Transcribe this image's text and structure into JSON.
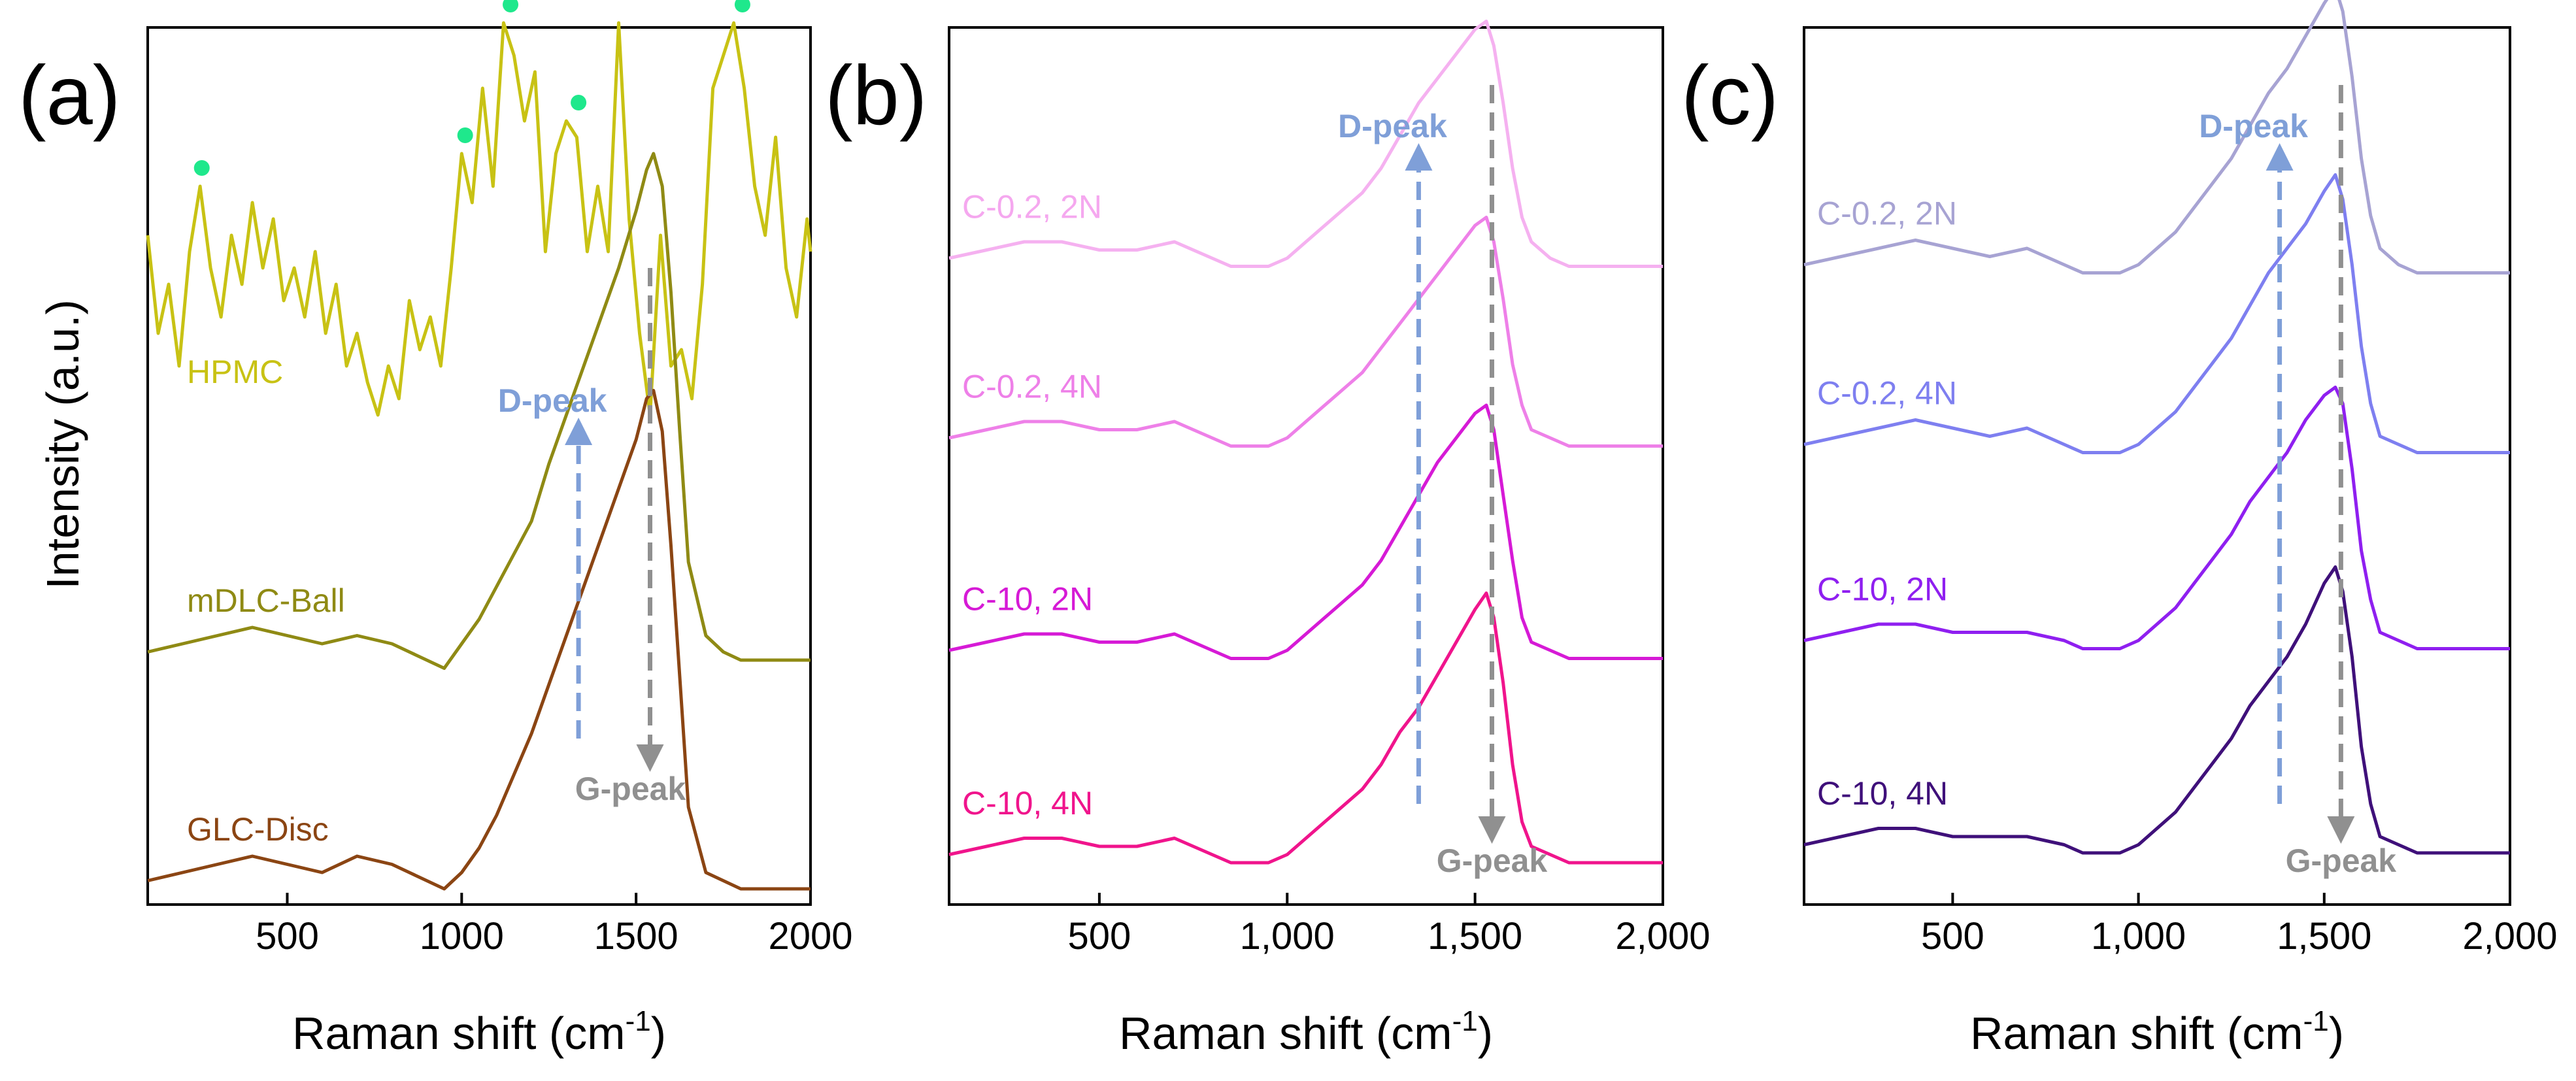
{
  "figure": {
    "y_axis_title": "Intensity (a.u.)",
    "x_axis_title_main": "Raman shift (cm",
    "x_axis_title_sup": "-1",
    "x_axis_title_close": ")"
  },
  "chart_data": [
    {
      "type": "line",
      "panel_label": "(a)",
      "xlabel": "Raman shift (cm-1)",
      "ylabel": "Intensity (a.u.)",
      "xlim": [
        100,
        2000
      ],
      "ylim": [
        0,
        1
      ],
      "xticks": [
        500,
        1000,
        1500,
        2000
      ],
      "xtick_labels": [
        "500",
        "1000",
        "1500",
        "2000"
      ],
      "grid": false,
      "series": [
        {
          "name": "HPMC",
          "color": "#c8c214",
          "label_color": "#c8c214",
          "offset": 0.56,
          "x": [
            100,
            130,
            160,
            190,
            220,
            250,
            280,
            310,
            340,
            370,
            400,
            430,
            460,
            490,
            520,
            550,
            580,
            610,
            640,
            670,
            700,
            730,
            760,
            790,
            820,
            850,
            880,
            910,
            940,
            970,
            1000,
            1030,
            1060,
            1090,
            1120,
            1150,
            1180,
            1210,
            1240,
            1270,
            1300,
            1330,
            1360,
            1390,
            1420,
            1450,
            1480,
            1510,
            1540,
            1570,
            1600,
            1630,
            1660,
            1690,
            1720,
            1750,
            1780,
            1810,
            1840,
            1870,
            1900,
            1930,
            1960,
            1990,
            2000
          ],
          "y": [
            0.24,
            0.12,
            0.18,
            0.08,
            0.22,
            0.3,
            0.2,
            0.14,
            0.24,
            0.18,
            0.28,
            0.2,
            0.26,
            0.16,
            0.2,
            0.14,
            0.22,
            0.12,
            0.18,
            0.08,
            0.12,
            0.06,
            0.02,
            0.08,
            0.04,
            0.16,
            0.1,
            0.14,
            0.08,
            0.2,
            0.34,
            0.28,
            0.42,
            0.3,
            0.5,
            0.46,
            0.38,
            0.44,
            0.22,
            0.34,
            0.38,
            0.36,
            0.22,
            0.3,
            0.22,
            0.5,
            0.26,
            0.12,
            0.02,
            0.24,
            0.08,
            0.1,
            0.04,
            0.18,
            0.42,
            0.46,
            0.5,
            0.42,
            0.3,
            0.24,
            0.36,
            0.2,
            0.14,
            0.26,
            0.22
          ],
          "markers": [
            {
              "x": 255,
              "y": 0.3
            },
            {
              "x": 1010,
              "y": 0.34
            },
            {
              "x": 1140,
              "y": 0.5
            },
            {
              "x": 1335,
              "y": 0.38
            },
            {
              "x": 1805,
              "y": 0.5
            }
          ]
        },
        {
          "name": "mDLC-Ball",
          "color": "#8f8a14",
          "label_color": "#8f8a14",
          "offset": 0.28,
          "x": [
            100,
            200,
            300,
            400,
            500,
            600,
            700,
            800,
            850,
            900,
            950,
            1000,
            1050,
            1100,
            1150,
            1200,
            1250,
            1300,
            1350,
            1400,
            1450,
            1500,
            1530,
            1550,
            1575,
            1600,
            1625,
            1650,
            1700,
            1750,
            1800,
            1900,
            2000
          ],
          "y": [
            0.01,
            0.02,
            0.03,
            0.04,
            0.03,
            0.02,
            0.03,
            0.02,
            0.01,
            0.0,
            -0.01,
            0.02,
            0.05,
            0.09,
            0.13,
            0.17,
            0.24,
            0.3,
            0.36,
            0.42,
            0.48,
            0.55,
            0.6,
            0.62,
            0.58,
            0.45,
            0.28,
            0.12,
            0.03,
            0.01,
            0.0,
            0.0,
            0.0
          ]
        },
        {
          "name": "GLC-Disc",
          "color": "#8b4513",
          "label_color": "#8b4513",
          "offset": 0.0,
          "x": [
            100,
            200,
            300,
            400,
            500,
            600,
            700,
            800,
            850,
            900,
            950,
            1000,
            1050,
            1100,
            1150,
            1200,
            1250,
            1300,
            1350,
            1400,
            1450,
            1500,
            1530,
            1550,
            1575,
            1600,
            1625,
            1650,
            1700,
            1750,
            1800,
            1900,
            2000
          ],
          "y": [
            0.01,
            0.02,
            0.03,
            0.04,
            0.03,
            0.02,
            0.04,
            0.03,
            0.02,
            0.01,
            0.0,
            0.02,
            0.05,
            0.09,
            0.14,
            0.19,
            0.25,
            0.31,
            0.37,
            0.43,
            0.49,
            0.55,
            0.6,
            0.61,
            0.56,
            0.42,
            0.26,
            0.1,
            0.02,
            0.01,
            0.0,
            0.0,
            0.0
          ]
        }
      ],
      "annotations": [
        {
          "text": "D-peak",
          "x": 1335,
          "color": "#7f9fd8",
          "direction": "up"
        },
        {
          "text": "G-peak",
          "x": 1540,
          "color": "#909090",
          "direction": "down"
        }
      ]
    },
    {
      "type": "line",
      "panel_label": "(b)",
      "xlabel": "Raman shift (cm-1)",
      "ylabel": "",
      "xlim": [
        100,
        2000
      ],
      "ylim": [
        0,
        1
      ],
      "xticks": [
        500,
        1000,
        1500,
        2000
      ],
      "xtick_labels": [
        "500",
        "1,000",
        "1,500",
        "2,000"
      ],
      "grid": false,
      "series": [
        {
          "name": "C-0.2, 2N",
          "color": "#f5b1f0",
          "label_color": "#f5a8ef",
          "offset": 0.75,
          "x": [
            100,
            200,
            300,
            400,
            500,
            600,
            700,
            800,
            850,
            900,
            950,
            1000,
            1050,
            1100,
            1150,
            1200,
            1250,
            1300,
            1350,
            1400,
            1450,
            1500,
            1530,
            1550,
            1575,
            1600,
            1625,
            1650,
            1700,
            1750,
            1800,
            1900,
            2000
          ],
          "y": [
            0.01,
            0.02,
            0.03,
            0.03,
            0.02,
            0.02,
            0.03,
            0.01,
            0.0,
            0.0,
            0.0,
            0.01,
            0.03,
            0.05,
            0.07,
            0.09,
            0.12,
            0.16,
            0.2,
            0.23,
            0.26,
            0.29,
            0.3,
            0.27,
            0.2,
            0.12,
            0.06,
            0.03,
            0.01,
            0.0,
            0.0,
            0.0,
            0.0
          ]
        },
        {
          "name": "C-0.2, 4N",
          "color": "#ee80e8",
          "label_color": "#ee80e8",
          "offset": 0.53,
          "x": [
            100,
            200,
            300,
            400,
            500,
            600,
            700,
            800,
            850,
            900,
            950,
            1000,
            1050,
            1100,
            1150,
            1200,
            1250,
            1300,
            1350,
            1400,
            1450,
            1500,
            1530,
            1550,
            1575,
            1600,
            1625,
            1650,
            1700,
            1750,
            1800,
            1900,
            2000
          ],
          "y": [
            0.01,
            0.02,
            0.03,
            0.03,
            0.02,
            0.02,
            0.03,
            0.01,
            0.0,
            0.0,
            0.0,
            0.01,
            0.03,
            0.05,
            0.07,
            0.09,
            0.12,
            0.15,
            0.18,
            0.21,
            0.24,
            0.27,
            0.28,
            0.25,
            0.18,
            0.1,
            0.05,
            0.02,
            0.01,
            0.0,
            0.0,
            0.0,
            0.0
          ]
        },
        {
          "name": "C-10, 2N",
          "color": "#d61ad6",
          "label_color": "#d61ad6",
          "offset": 0.27,
          "x": [
            100,
            200,
            300,
            400,
            500,
            600,
            700,
            800,
            850,
            900,
            950,
            1000,
            1050,
            1100,
            1150,
            1200,
            1250,
            1300,
            1350,
            1400,
            1450,
            1500,
            1530,
            1550,
            1575,
            1600,
            1625,
            1650,
            1700,
            1750,
            1800,
            1900,
            2000
          ],
          "y": [
            0.01,
            0.02,
            0.03,
            0.03,
            0.02,
            0.02,
            0.03,
            0.01,
            0.0,
            0.0,
            0.0,
            0.01,
            0.03,
            0.05,
            0.07,
            0.09,
            0.12,
            0.16,
            0.2,
            0.24,
            0.27,
            0.3,
            0.31,
            0.28,
            0.2,
            0.12,
            0.05,
            0.02,
            0.01,
            0.0,
            0.0,
            0.0,
            0.0
          ]
        },
        {
          "name": "C-10, 4N",
          "color": "#f0148c",
          "label_color": "#f0148c",
          "offset": 0.02,
          "x": [
            100,
            200,
            300,
            400,
            500,
            600,
            700,
            800,
            850,
            900,
            950,
            1000,
            1050,
            1100,
            1150,
            1200,
            1250,
            1300,
            1350,
            1400,
            1450,
            1500,
            1530,
            1550,
            1575,
            1600,
            1625,
            1650,
            1700,
            1750,
            1800,
            1900,
            2000
          ],
          "y": [
            0.01,
            0.02,
            0.03,
            0.03,
            0.02,
            0.02,
            0.03,
            0.01,
            0.0,
            0.0,
            0.0,
            0.01,
            0.03,
            0.05,
            0.07,
            0.09,
            0.12,
            0.16,
            0.19,
            0.23,
            0.27,
            0.31,
            0.33,
            0.3,
            0.22,
            0.12,
            0.05,
            0.02,
            0.01,
            0.0,
            0.0,
            0.0,
            0.0
          ]
        }
      ],
      "annotations": [
        {
          "text": "D-peak",
          "x": 1350,
          "color": "#7f9fd8",
          "direction": "up"
        },
        {
          "text": "G-peak",
          "x": 1545,
          "color": "#909090",
          "direction": "down"
        }
      ]
    },
    {
      "type": "line",
      "panel_label": "(c)",
      "xlabel": "Raman shift (cm-1)",
      "ylabel": "",
      "xlim": [
        100,
        2000
      ],
      "ylim": [
        0,
        1
      ],
      "xticks": [
        500,
        1000,
        1500,
        2000
      ],
      "xtick_labels": [
        "500",
        "1,000",
        "1,500",
        "2,000"
      ],
      "grid": false,
      "series": [
        {
          "name": "C-0.2, 2N",
          "color": "#a7a3d3",
          "label_color": "#a7a3d3",
          "offset": 0.73,
          "x": [
            100,
            200,
            300,
            400,
            500,
            600,
            700,
            800,
            850,
            900,
            950,
            1000,
            1050,
            1100,
            1150,
            1200,
            1250,
            1300,
            1350,
            1400,
            1450,
            1500,
            1530,
            1550,
            1575,
            1600,
            1625,
            1650,
            1700,
            1750,
            1800,
            1900,
            2000
          ],
          "y": [
            0.01,
            0.02,
            0.03,
            0.04,
            0.03,
            0.02,
            0.03,
            0.01,
            0.0,
            0.0,
            0.0,
            0.01,
            0.03,
            0.05,
            0.08,
            0.11,
            0.14,
            0.18,
            0.22,
            0.25,
            0.29,
            0.33,
            0.35,
            0.32,
            0.24,
            0.14,
            0.07,
            0.03,
            0.01,
            0.0,
            0.0,
            0.0,
            0.0
          ]
        },
        {
          "name": "C-0.2, 4N",
          "color": "#7e7ff0",
          "label_color": "#7e7ff0",
          "offset": 0.51,
          "x": [
            100,
            200,
            300,
            400,
            500,
            600,
            700,
            800,
            850,
            900,
            950,
            1000,
            1050,
            1100,
            1150,
            1200,
            1250,
            1300,
            1350,
            1400,
            1450,
            1500,
            1530,
            1550,
            1575,
            1600,
            1625,
            1650,
            1700,
            1750,
            1800,
            1900,
            2000
          ],
          "y": [
            0.01,
            0.02,
            0.03,
            0.04,
            0.03,
            0.02,
            0.03,
            0.01,
            0.0,
            0.0,
            0.0,
            0.01,
            0.03,
            0.05,
            0.08,
            0.11,
            0.14,
            0.18,
            0.22,
            0.25,
            0.28,
            0.32,
            0.34,
            0.31,
            0.23,
            0.13,
            0.06,
            0.02,
            0.01,
            0.0,
            0.0,
            0.0,
            0.0
          ]
        },
        {
          "name": "C-10, 2N",
          "color": "#8f1ff0",
          "label_color": "#8f1ff0",
          "offset": 0.27,
          "x": [
            100,
            200,
            300,
            400,
            500,
            600,
            700,
            800,
            850,
            900,
            950,
            1000,
            1050,
            1100,
            1150,
            1200,
            1250,
            1300,
            1350,
            1400,
            1450,
            1500,
            1530,
            1550,
            1575,
            1600,
            1625,
            1650,
            1700,
            1750,
            1800,
            1900,
            2000
          ],
          "y": [
            0.01,
            0.02,
            0.03,
            0.03,
            0.02,
            0.02,
            0.02,
            0.01,
            0.0,
            0.0,
            0.0,
            0.01,
            0.03,
            0.05,
            0.08,
            0.11,
            0.14,
            0.18,
            0.21,
            0.24,
            0.28,
            0.31,
            0.32,
            0.3,
            0.22,
            0.12,
            0.06,
            0.02,
            0.01,
            0.0,
            0.0,
            0.0,
            0.0
          ]
        },
        {
          "name": "C-10, 4N",
          "color": "#3f107a",
          "label_color": "#3f107a",
          "offset": 0.02,
          "x": [
            100,
            200,
            300,
            400,
            500,
            600,
            700,
            800,
            850,
            900,
            950,
            1000,
            1050,
            1100,
            1150,
            1200,
            1250,
            1300,
            1350,
            1400,
            1450,
            1500,
            1530,
            1550,
            1575,
            1600,
            1625,
            1650,
            1700,
            1750,
            1800,
            1900,
            2000
          ],
          "y": [
            0.01,
            0.02,
            0.03,
            0.03,
            0.02,
            0.02,
            0.02,
            0.01,
            0.0,
            0.0,
            0.0,
            0.01,
            0.03,
            0.05,
            0.08,
            0.11,
            0.14,
            0.18,
            0.21,
            0.24,
            0.28,
            0.33,
            0.35,
            0.32,
            0.24,
            0.13,
            0.06,
            0.02,
            0.01,
            0.0,
            0.0,
            0.0,
            0.0
          ]
        }
      ],
      "annotations": [
        {
          "text": "D-peak",
          "x": 1380,
          "color": "#7f9fd8",
          "direction": "up"
        },
        {
          "text": "G-peak",
          "x": 1545,
          "color": "#909090",
          "direction": "down"
        }
      ]
    }
  ]
}
